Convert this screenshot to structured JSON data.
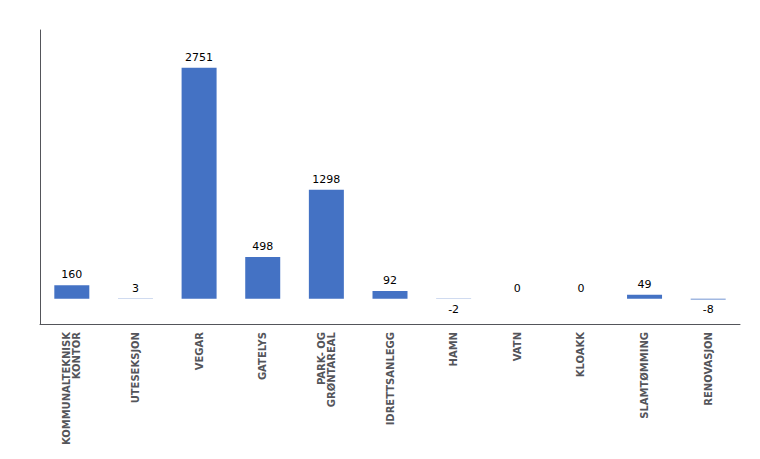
{
  "chart_data": {
    "type": "bar",
    "categories": [
      "KOMMUNALTEKNISK\nKONTOR",
      "UTESEKSJON",
      "VEGAR",
      "GATELYS",
      "PARK- OG\nGRØNTAREAL",
      "IDRETTSANLEGG",
      "HAMN",
      "VATN",
      "KLOAKK",
      "SLAMTØMMING",
      "RENOVASJON"
    ],
    "values": [
      160,
      3,
      2751,
      498,
      1298,
      92,
      -2,
      0,
      0,
      49,
      -8
    ],
    "color": "#4472C4",
    "ylim": [
      -300,
      3200
    ],
    "grid": false,
    "data_labels": true,
    "tick_labels": "x"
  }
}
